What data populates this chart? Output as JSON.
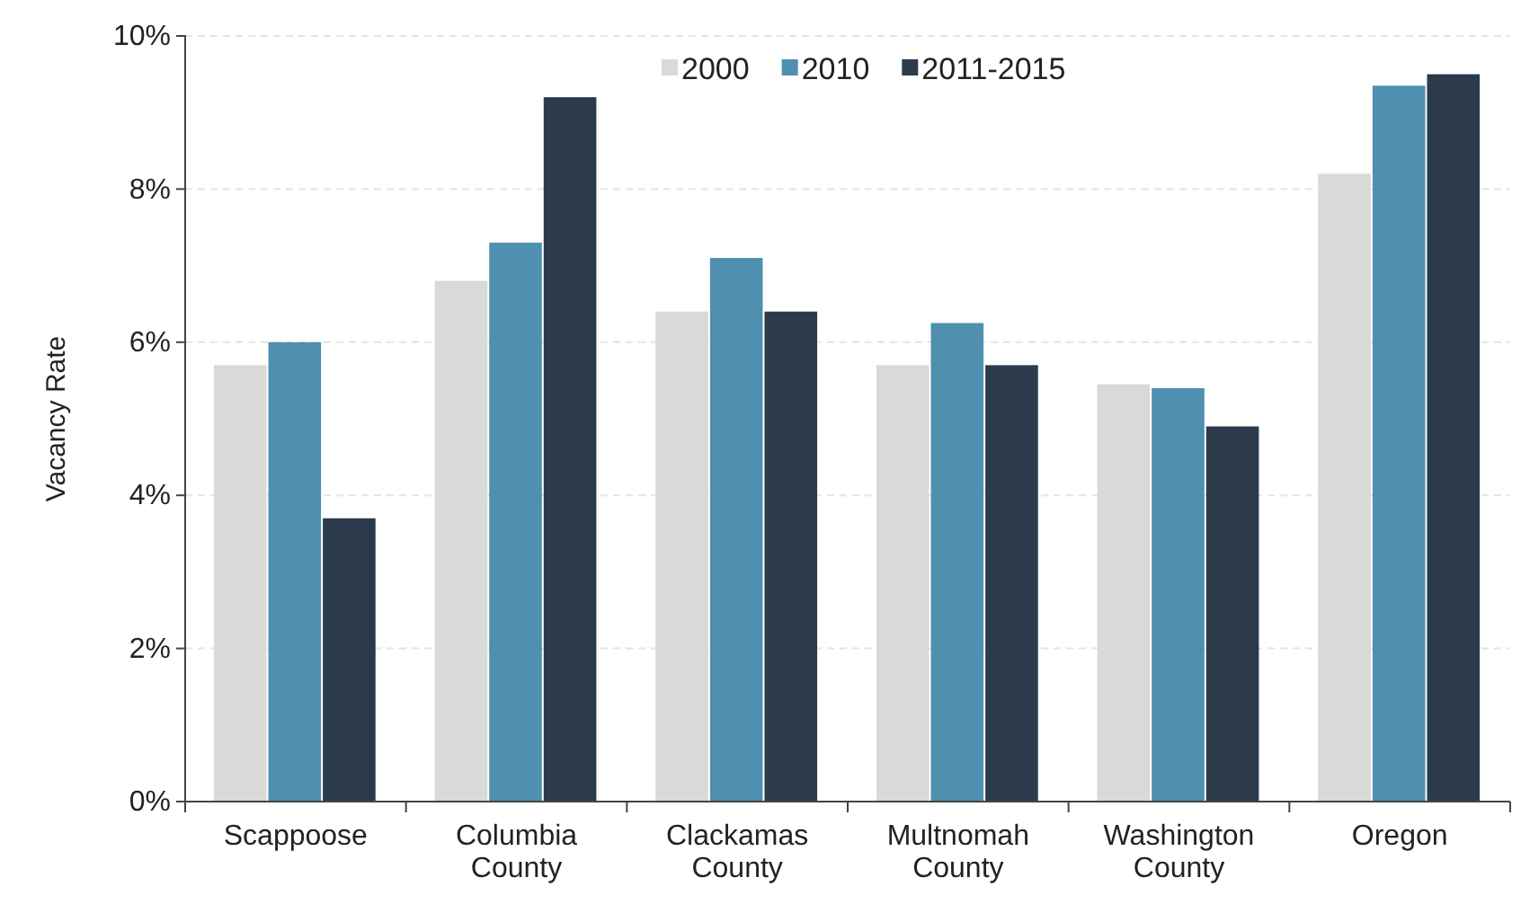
{
  "chart_data": {
    "type": "bar",
    "ylabel": "Vacancy Rate",
    "categories": [
      "Scappoose",
      "Columbia County",
      "Clackamas County",
      "Multnomah County",
      "Washington County",
      "Oregon"
    ],
    "series": [
      {
        "name": "2000",
        "color": "#d9d9d9",
        "values": [
          5.7,
          6.8,
          6.4,
          5.7,
          5.45,
          8.2
        ]
      },
      {
        "name": "2010",
        "color": "#4f8fb0",
        "values": [
          6.0,
          7.3,
          7.1,
          6.25,
          5.4,
          9.35
        ]
      },
      {
        "name": "2011-2015",
        "color": "#2b3b4b",
        "values": [
          3.7,
          9.2,
          6.4,
          5.7,
          4.9,
          9.5
        ]
      }
    ],
    "ylim": [
      0,
      10
    ],
    "yticks": [
      {
        "value": 0,
        "label": "0%"
      },
      {
        "value": 2,
        "label": "2%"
      },
      {
        "value": 4,
        "label": "4%"
      },
      {
        "value": 6,
        "label": "6%"
      },
      {
        "value": 8,
        "label": "8%"
      },
      {
        "value": 10,
        "label": "10%"
      }
    ],
    "grid": "y",
    "legend": "top"
  }
}
